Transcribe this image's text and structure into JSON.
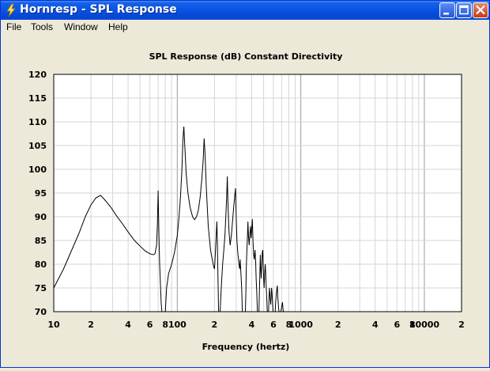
{
  "window": {
    "title": "Hornresp - SPL Response"
  },
  "menu": {
    "items": [
      "File",
      "Tools",
      "Window",
      "Help"
    ]
  },
  "chart_data": {
    "type": "line",
    "title": "SPL Response (dB)    Constant Directivity",
    "xlabel": "Frequency (hertz)",
    "ylabel": "",
    "xscale": "log",
    "xlim": [
      10,
      20000
    ],
    "ylim": [
      70,
      120
    ],
    "y_ticks": [
      120,
      115,
      110,
      105,
      100,
      95,
      90,
      85,
      80,
      75,
      70
    ],
    "x_ticks": [
      {
        "value": 10,
        "label": "10"
      },
      {
        "value": 20,
        "label": "2"
      },
      {
        "value": 40,
        "label": "4"
      },
      {
        "value": 60,
        "label": "6"
      },
      {
        "value": 80,
        "label": "8"
      },
      {
        "value": 100,
        "label": "100"
      },
      {
        "value": 200,
        "label": "2"
      },
      {
        "value": 400,
        "label": "4"
      },
      {
        "value": 600,
        "label": "6"
      },
      {
        "value": 800,
        "label": "8"
      },
      {
        "value": 1000,
        "label": "1000"
      },
      {
        "value": 2000,
        "label": "2"
      },
      {
        "value": 4000,
        "label": "4"
      },
      {
        "value": 6000,
        "label": "6"
      },
      {
        "value": 8000,
        "label": "8"
      },
      {
        "value": 10000,
        "label": "10000"
      },
      {
        "value": 20000,
        "label": "2"
      }
    ],
    "grid": true,
    "series": [
      {
        "color": "#000000",
        "points": [
          [
            10,
            75
          ],
          [
            12,
            79
          ],
          [
            14,
            83
          ],
          [
            16,
            86.5
          ],
          [
            18,
            90
          ],
          [
            20,
            92.5
          ],
          [
            22,
            94
          ],
          [
            24,
            94.5
          ],
          [
            26,
            93.5
          ],
          [
            29,
            92
          ],
          [
            32,
            90.3
          ],
          [
            36,
            88.5
          ],
          [
            40,
            86.8
          ],
          [
            45,
            85
          ],
          [
            50,
            83.8
          ],
          [
            55,
            82.8
          ],
          [
            60,
            82.2
          ],
          [
            64,
            82
          ],
          [
            66,
            82.2
          ],
          [
            68,
            84
          ],
          [
            69,
            88
          ],
          [
            70,
            95.5
          ],
          [
            71,
            86
          ],
          [
            72,
            80
          ],
          [
            74,
            72
          ],
          [
            75,
            70
          ],
          [
            80,
            70
          ],
          [
            82,
            75
          ],
          [
            85,
            78
          ],
          [
            90,
            80
          ],
          [
            95,
            82.5
          ],
          [
            100,
            86
          ],
          [
            103,
            89.5
          ],
          [
            106,
            94
          ],
          [
            109,
            100
          ],
          [
            111,
            106
          ],
          [
            113,
            109
          ],
          [
            115,
            105
          ],
          [
            118,
            99
          ],
          [
            122,
            95
          ],
          [
            127,
            92
          ],
          [
            133,
            90
          ],
          [
            138,
            89.4
          ],
          [
            143,
            90
          ],
          [
            148,
            91.3
          ],
          [
            153,
            94
          ],
          [
            158,
            98
          ],
          [
            162,
            102
          ],
          [
            165,
            106.5
          ],
          [
            168,
            103
          ],
          [
            172,
            96
          ],
          [
            178,
            88
          ],
          [
            186,
            83
          ],
          [
            192,
            81
          ],
          [
            197,
            79.5
          ],
          [
            200,
            79
          ],
          [
            203,
            82
          ],
          [
            206,
            85.5
          ],
          [
            209,
            89
          ],
          [
            211,
            85
          ],
          [
            213,
            79
          ],
          [
            216,
            70
          ],
          [
            222,
            70
          ],
          [
            228,
            76
          ],
          [
            233,
            80
          ],
          [
            238,
            83
          ],
          [
            243,
            86
          ],
          [
            247,
            90
          ],
          [
            251,
            94
          ],
          [
            254,
            98.5
          ],
          [
            257,
            93
          ],
          [
            262,
            87
          ],
          [
            268,
            84
          ],
          [
            274,
            86
          ],
          [
            280,
            89
          ],
          [
            286,
            92
          ],
          [
            292,
            94.5
          ],
          [
            296,
            96
          ],
          [
            299,
            91
          ],
          [
            304,
            85
          ],
          [
            310,
            82
          ],
          [
            316,
            80
          ],
          [
            320,
            79
          ],
          [
            323,
            81
          ],
          [
            326,
            79
          ],
          [
            329,
            77
          ],
          [
            333,
            74
          ],
          [
            336,
            70
          ],
          [
            356,
            70
          ],
          [
            359,
            74
          ],
          [
            362,
            79
          ],
          [
            366,
            83
          ],
          [
            370,
            86
          ],
          [
            373,
            89
          ],
          [
            377,
            86
          ],
          [
            382,
            84
          ],
          [
            387,
            86.5
          ],
          [
            392,
            88
          ],
          [
            396,
            85.5
          ],
          [
            400,
            87
          ],
          [
            405,
            89.5
          ],
          [
            410,
            85
          ],
          [
            415,
            82
          ],
          [
            420,
            81
          ],
          [
            426,
            83
          ],
          [
            431,
            80.5
          ],
          [
            435,
            77
          ],
          [
            440,
            74
          ],
          [
            445,
            70
          ],
          [
            458,
            70
          ],
          [
            462,
            74
          ],
          [
            466,
            78
          ],
          [
            470,
            82
          ],
          [
            474,
            79
          ],
          [
            478,
            77
          ],
          [
            483,
            80
          ],
          [
            488,
            82.5
          ],
          [
            492,
            83
          ],
          [
            496,
            80
          ],
          [
            500,
            77
          ],
          [
            505,
            75
          ],
          [
            510,
            78
          ],
          [
            515,
            80
          ],
          [
            520,
            78
          ],
          [
            525,
            75
          ],
          [
            530,
            73
          ],
          [
            535,
            70
          ],
          [
            548,
            70
          ],
          [
            553,
            73
          ],
          [
            558,
            75
          ],
          [
            563,
            73.5
          ],
          [
            570,
            71.5
          ],
          [
            575,
            73
          ],
          [
            580,
            75
          ],
          [
            585,
            74
          ],
          [
            590,
            72
          ],
          [
            595,
            70
          ],
          [
            620,
            70
          ],
          [
            626,
            72
          ],
          [
            632,
            73.5
          ],
          [
            638,
            74.5
          ],
          [
            645,
            75.5
          ],
          [
            651,
            73
          ],
          [
            656,
            72
          ],
          [
            662,
            70.5
          ],
          [
            668,
            70
          ],
          [
            690,
            70
          ],
          [
            700,
            71
          ],
          [
            710,
            72
          ],
          [
            718,
            70.5
          ],
          [
            725,
            70
          ]
        ]
      }
    ]
  }
}
